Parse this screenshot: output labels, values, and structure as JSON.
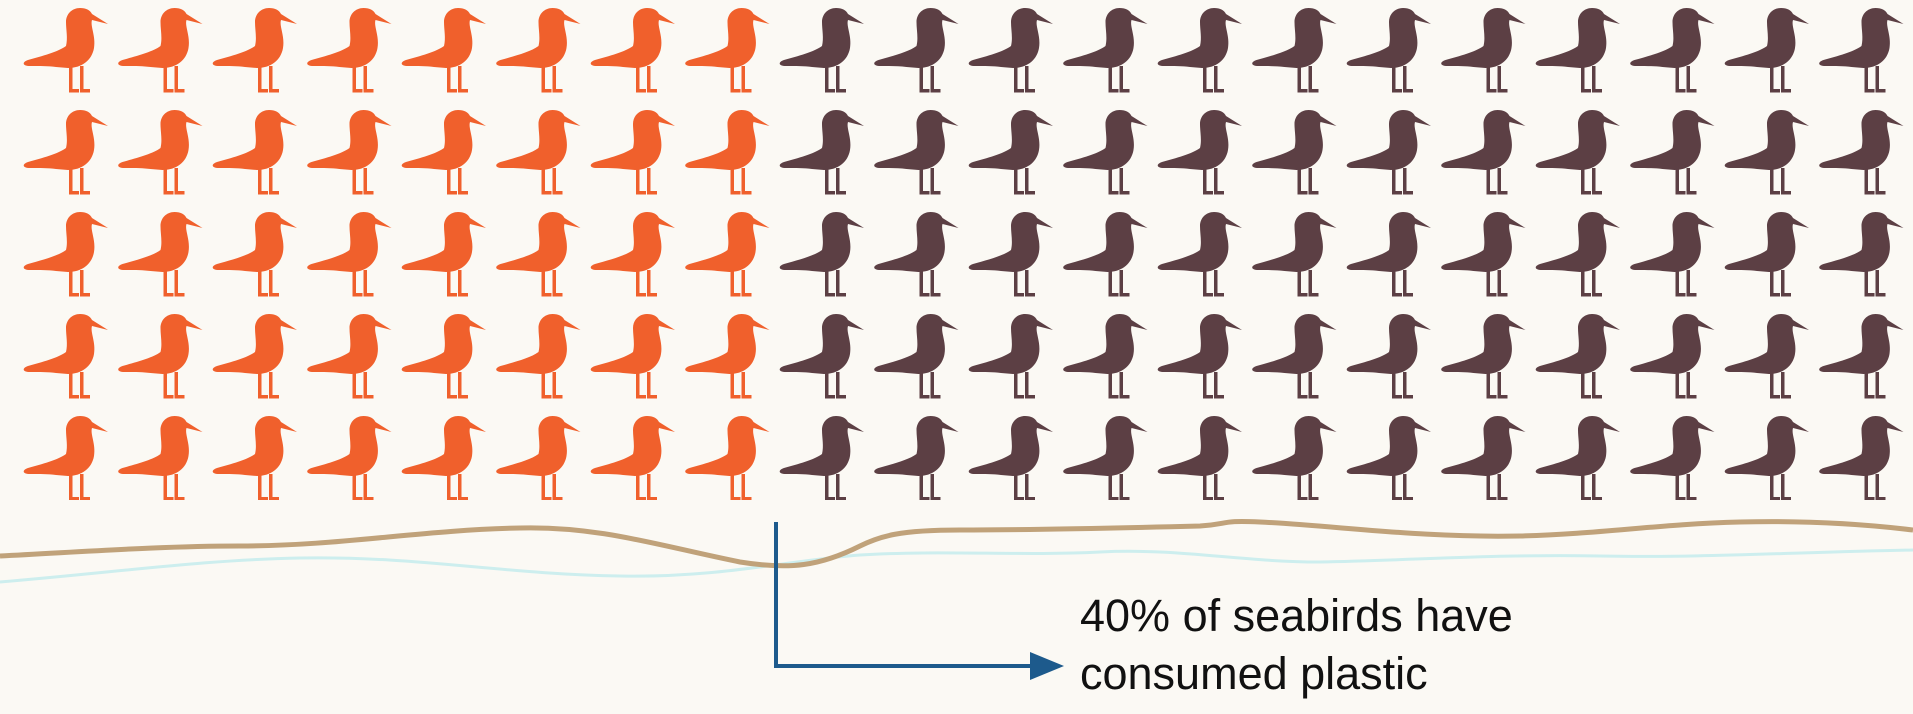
{
  "chart_data": {
    "type": "pictogram",
    "icon": "seabird-icon",
    "rows": 5,
    "columns": 20,
    "total_icons": 100,
    "highlighted_share": 0.4,
    "highlighted_icons": 40,
    "fill_order": "left-to-right by column",
    "colors": {
      "highlighted": "#f0602c",
      "other": "#5c3f44",
      "sand_line": "#c0a27a",
      "water_line": "#cdeeee",
      "arrow": "#1d5a8c",
      "background": "#fbf9f4"
    },
    "annotation": "40% of seabirds have\nconsumed plastic"
  }
}
